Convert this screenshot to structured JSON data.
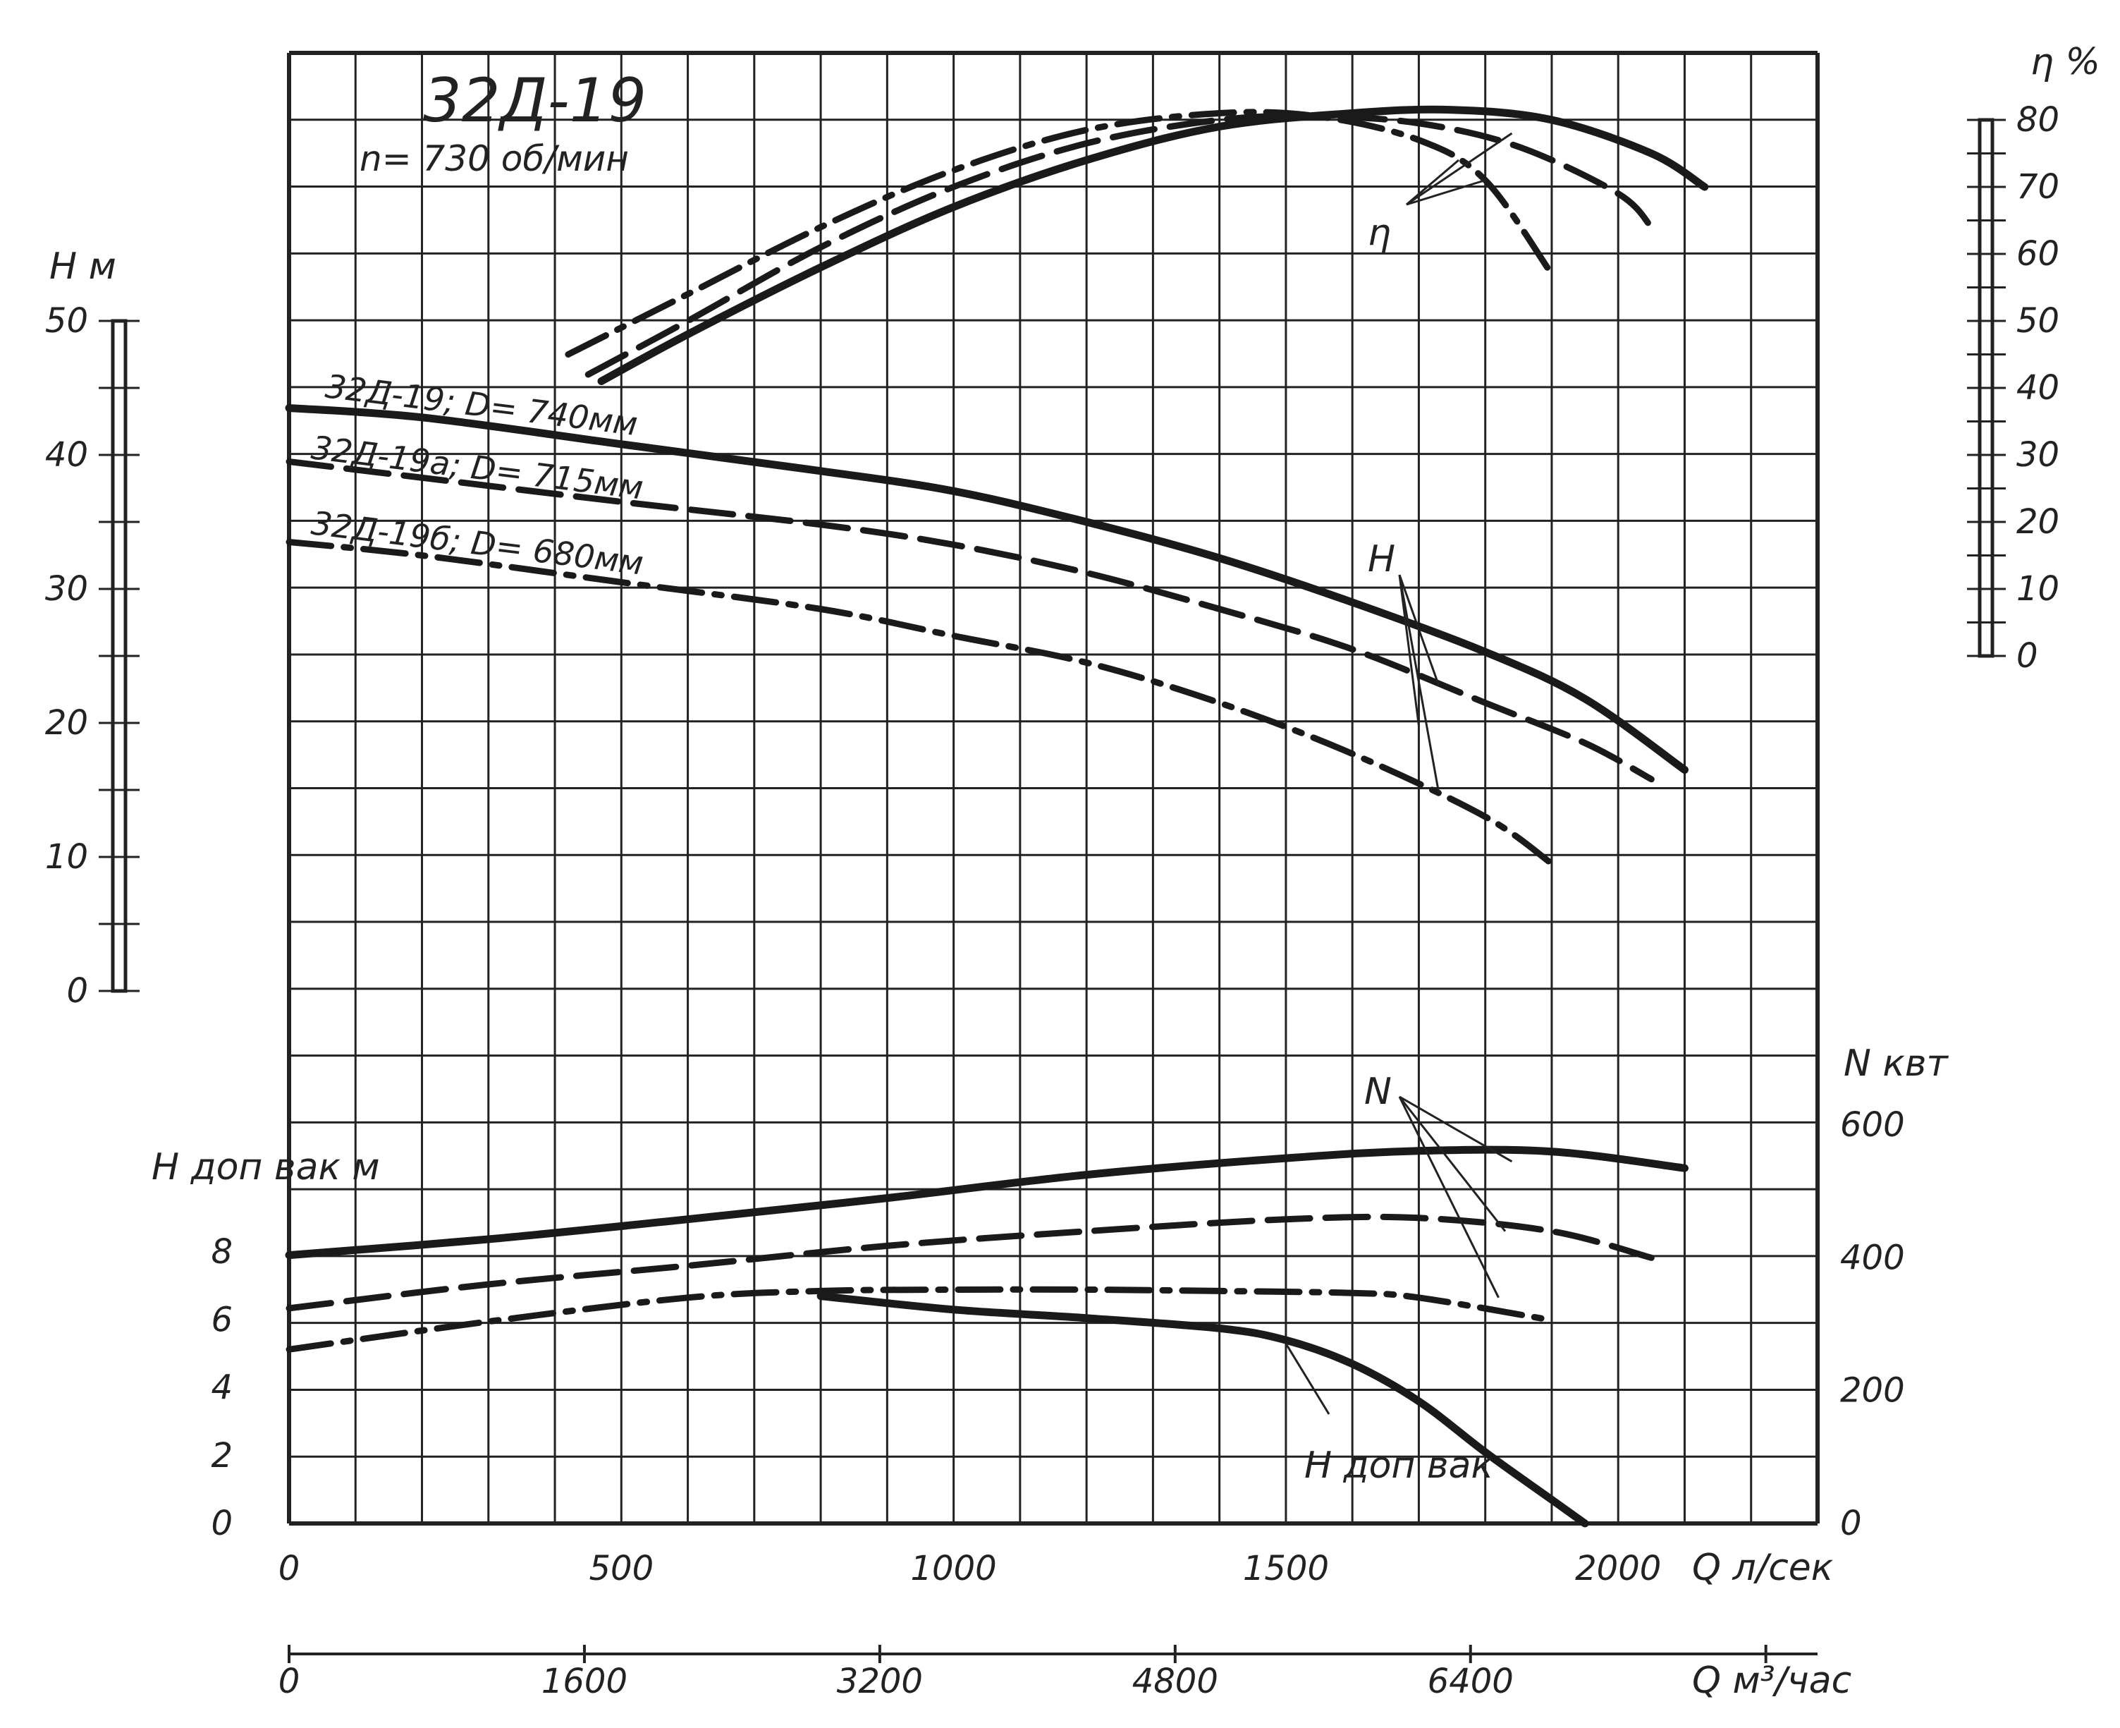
{
  "chart_data": {
    "type": "line",
    "title": "32Д-19",
    "subtitle": "n= 730 об/мин",
    "xlabel": "Q л/сек",
    "x2label": "Q м³/час",
    "y_head_label": "Н м",
    "y_eff_label": "η %",
    "y_power_label": "N квт",
    "y_vac_label": "H доп вак м",
    "xlim": [
      0,
      2300
    ],
    "x_ticks": [
      "0",
      "500",
      "1000",
      "1500",
      "2000"
    ],
    "x2_ticks": [
      "0",
      "1600",
      "3200",
      "4800",
      "6400"
    ],
    "head_ylim": [
      0,
      50
    ],
    "head_ticks": [
      "0",
      "10",
      "20",
      "30",
      "40",
      "50"
    ],
    "eff_ylim": [
      0,
      80
    ],
    "eff_ticks": [
      "0",
      "10",
      "20",
      "30",
      "40",
      "50",
      "60",
      "70",
      "80"
    ],
    "power_ylim": [
      0,
      600
    ],
    "power_ticks": [
      "0",
      "200",
      "400",
      "600"
    ],
    "vac_ylim": [
      0,
      8
    ],
    "vac_ticks": [
      "0",
      "2",
      "4",
      "6",
      "8"
    ],
    "grid": true,
    "curve_labels": [
      "η",
      "Н",
      "N",
      "H доп вак"
    ],
    "series": [
      {
        "name": "32Д-19; D= 740мм",
        "group": "H",
        "style": "solid",
        "x": [
          0,
          200,
          500,
          800,
          1000,
          1200,
          1400,
          1600,
          1800,
          1950,
          2100
        ],
        "y": [
          43.5,
          42.8,
          40.8,
          38.8,
          37.3,
          35.0,
          32.3,
          29.0,
          25.3,
          21.8,
          16.5
        ]
      },
      {
        "name": "32Д-19а; D= 715мм",
        "group": "H",
        "style": "dashed",
        "x": [
          0,
          200,
          500,
          800,
          1000,
          1200,
          1400,
          1600,
          1800,
          1950,
          2050
        ],
        "y": [
          39.5,
          38.3,
          36.5,
          34.8,
          33.3,
          31.2,
          28.5,
          25.5,
          21.5,
          18.5,
          15.8
        ]
      },
      {
        "name": "32Д-19б; D= 680мм",
        "group": "H",
        "style": "dashdot",
        "x": [
          0,
          200,
          500,
          800,
          1000,
          1200,
          1400,
          1600,
          1800,
          1900
        ],
        "y": [
          33.5,
          32.5,
          30.5,
          28.5,
          26.5,
          24.5,
          21.5,
          17.7,
          13.0,
          9.5
        ]
      },
      {
        "name": "",
        "group": "eta",
        "style": "solid",
        "x": [
          470,
          600,
          800,
          1000,
          1200,
          1400,
          1600,
          1750,
          1900,
          2050,
          2130
        ],
        "y": [
          41,
          48,
          58,
          67,
          74,
          79,
          81,
          81.5,
          80,
          75,
          70
        ]
      },
      {
        "name": "",
        "group": "eta",
        "style": "dashed",
        "x": [
          450,
          600,
          800,
          1000,
          1200,
          1400,
          1550,
          1700,
          1850,
          2000,
          2050
        ],
        "y": [
          42,
          50,
          61,
          70,
          76.5,
          80,
          80.5,
          79.5,
          76,
          69,
          64
        ]
      },
      {
        "name": "",
        "group": "eta",
        "style": "dashdot",
        "x": [
          420,
          600,
          800,
          1000,
          1200,
          1400,
          1550,
          1700,
          1800,
          1900
        ],
        "y": [
          45,
          54,
          64,
          72.5,
          78.5,
          81,
          80.5,
          77,
          71,
          57
        ]
      },
      {
        "name": "",
        "group": "N",
        "style": "solid",
        "x": [
          0,
          300,
          600,
          900,
          1200,
          1500,
          1700,
          1900,
          2100
        ],
        "y": [
          404,
          428,
          458,
          490,
          525,
          550,
          561,
          560,
          535
        ]
      },
      {
        "name": "",
        "group": "N",
        "style": "dashed",
        "x": [
          0,
          300,
          600,
          900,
          1200,
          1500,
          1700,
          1900,
          2050
        ],
        "y": [
          324,
          360,
          388,
          418,
          440,
          458,
          460,
          440,
          400
        ]
      },
      {
        "name": "",
        "group": "N",
        "style": "dashdot",
        "x": [
          0,
          300,
          600,
          800,
          1000,
          1200,
          1400,
          1600,
          1700,
          1900
        ],
        "y": [
          262,
          304,
          340,
          350,
          352,
          352,
          350,
          347,
          340,
          306
        ]
      },
      {
        "name": "",
        "group": "Hvac",
        "style": "solid",
        "x": [
          800,
          1000,
          1200,
          1400,
          1500,
          1600,
          1700,
          1800,
          1900,
          1950
        ],
        "y": [
          6.7,
          6.3,
          6.05,
          5.75,
          5.4,
          4.7,
          3.6,
          2.1,
          0.7,
          0
        ]
      }
    ]
  }
}
